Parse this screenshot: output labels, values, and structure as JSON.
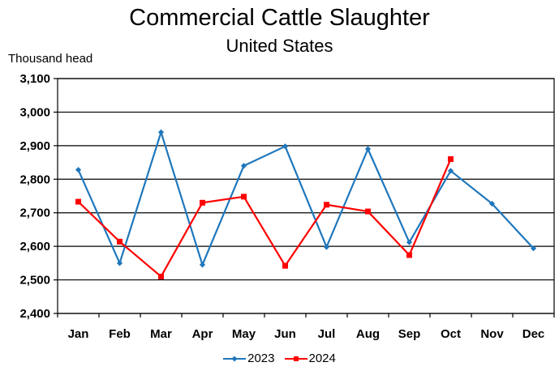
{
  "chart_data": {
    "type": "line",
    "title": "Commercial Cattle Slaughter",
    "subtitle": "United States",
    "ylabel": "Thousand head",
    "xlabel": "",
    "categories": [
      "Jan",
      "Feb",
      "Mar",
      "Apr",
      "May",
      "Jun",
      "Jul",
      "Aug",
      "Sep",
      "Oct",
      "Nov",
      "Dec"
    ],
    "ylim": [
      2400,
      3100
    ],
    "yticks": [
      2400,
      2500,
      2600,
      2700,
      2800,
      2900,
      3000,
      3100
    ],
    "ytick_labels": [
      "2,400",
      "2,500",
      "2,600",
      "2,700",
      "2,800",
      "2,900",
      "3,000",
      "3,100"
    ],
    "grid": "horizontal",
    "legend": "bottom",
    "series": [
      {
        "name": "2023",
        "color": "#1f77bc",
        "marker": "diamond",
        "values": [
          2828,
          2550,
          2940,
          2545,
          2840,
          2898,
          2598,
          2890,
          2612,
          2825,
          2727,
          2594
        ]
      },
      {
        "name": "2024",
        "color": "#ff0000",
        "marker": "square",
        "values": [
          2733,
          2614,
          2510,
          2730,
          2748,
          2542,
          2724,
          2704,
          2574,
          2860,
          null,
          null
        ]
      }
    ]
  }
}
